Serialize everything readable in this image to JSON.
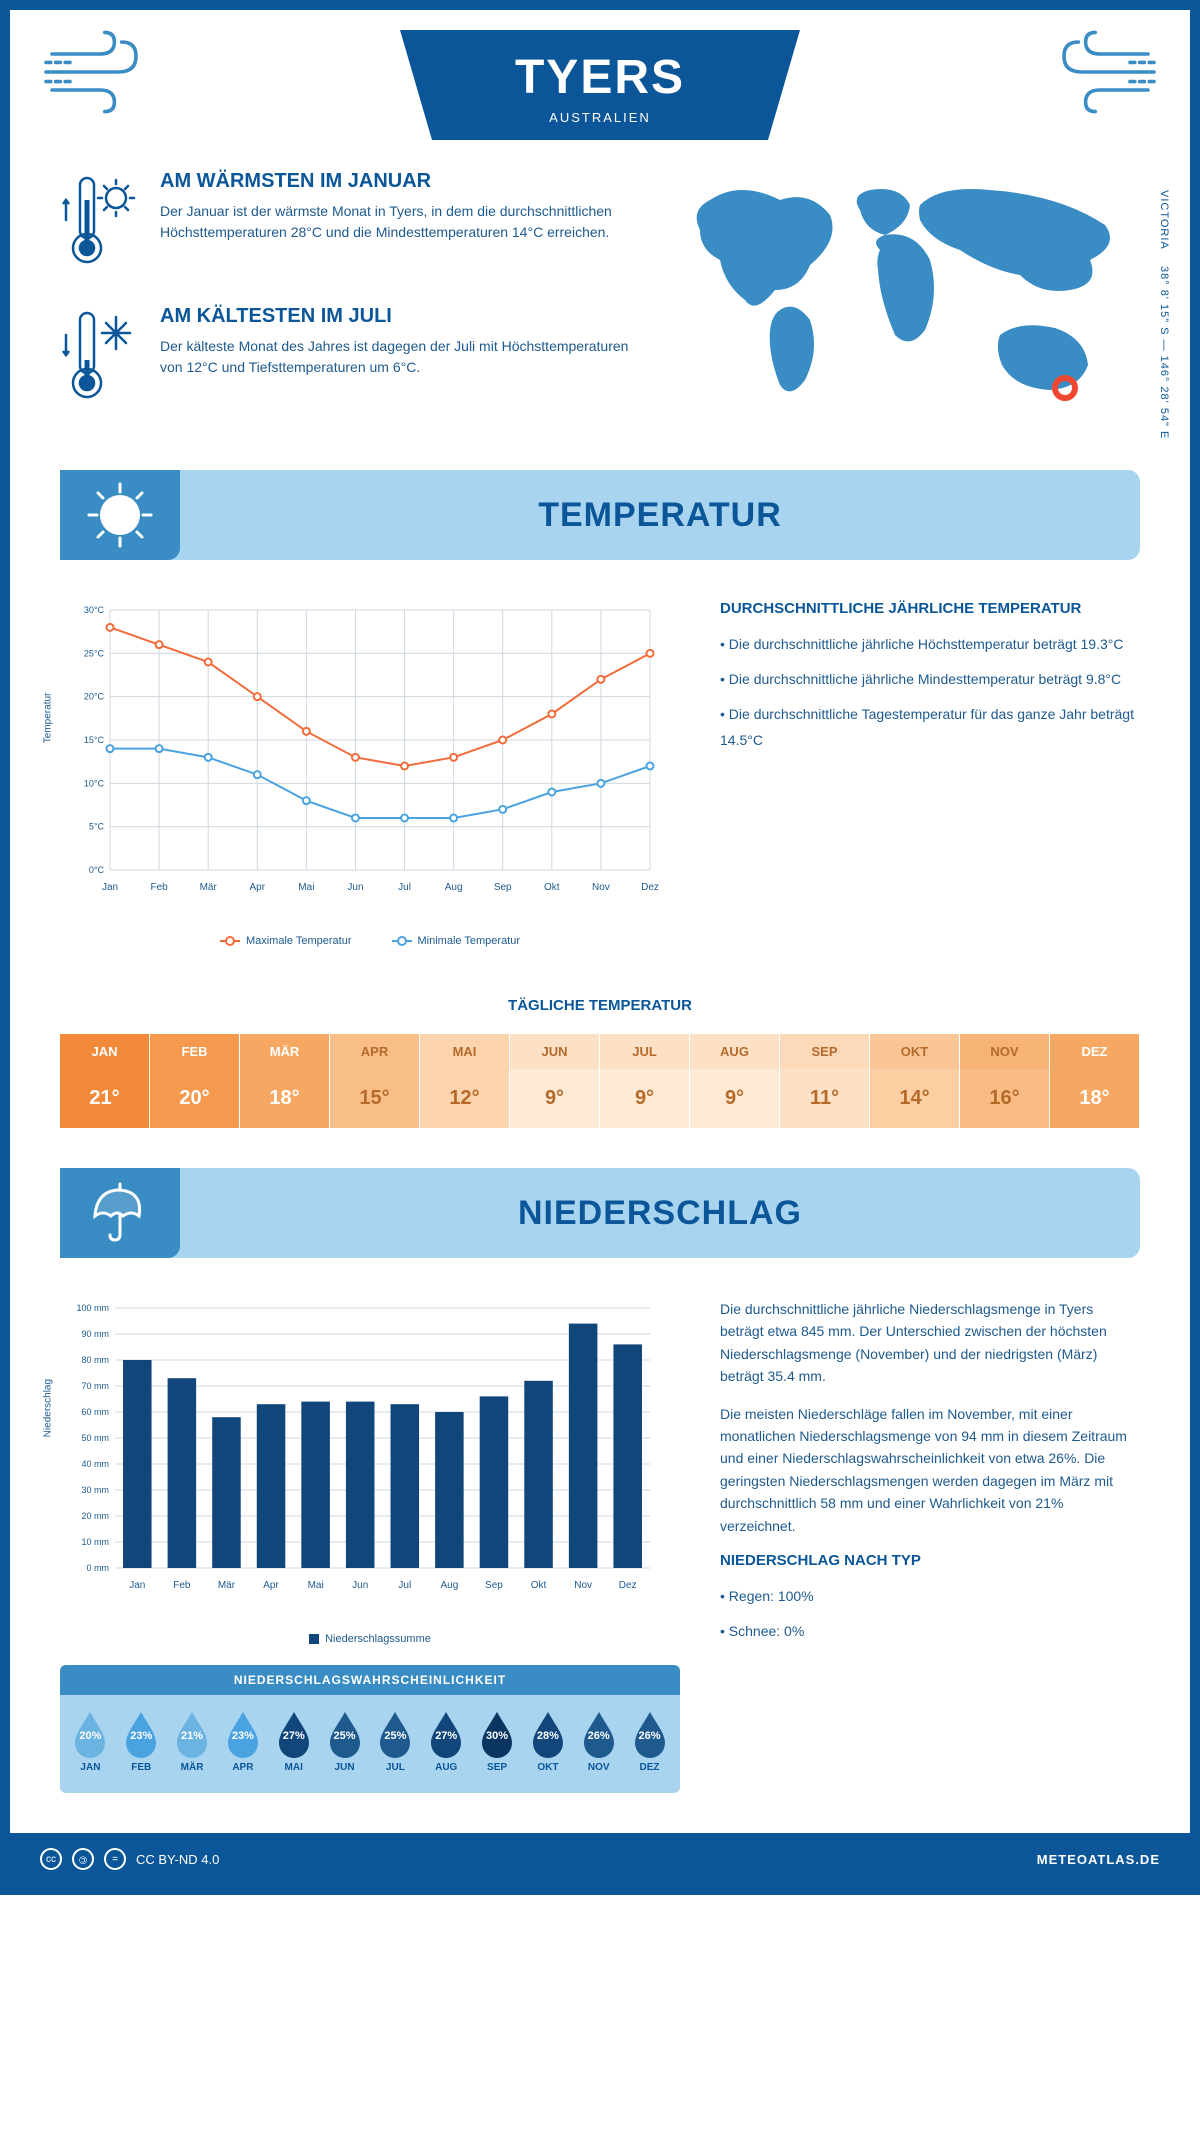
{
  "colors": {
    "primary": "#0a5698",
    "accent": "#3a8dc4",
    "light": "#a8d4f0",
    "text": "#1e5a8e",
    "line_max": "#f26b3a",
    "line_min": "#4aa3e0",
    "bar": "#10467a"
  },
  "header": {
    "title": "TYERS",
    "subtitle": "AUSTRALIEN"
  },
  "coords": {
    "lat": "38° 8' 15\" S",
    "sep": "—",
    "lon": "146° 28' 54\" E",
    "region": "VICTORIA"
  },
  "facts": {
    "warm": {
      "title": "AM WÄRMSTEN IM JANUAR",
      "text": "Der Januar ist der wärmste Monat in Tyers, in dem die durchschnittlichen Höchsttemperaturen 28°C und die Mindesttemperaturen 14°C erreichen."
    },
    "cold": {
      "title": "AM KÄLTESTEN IM JULI",
      "text": "Der kälteste Monat des Jahres ist dagegen der Juli mit Höchsttemperaturen von 12°C und Tiefsttemperaturen um 6°C."
    }
  },
  "temp_section": {
    "title": "TEMPERATUR",
    "chart": {
      "type": "line",
      "ylabel": "Temperatur",
      "ylim": [
        0,
        30
      ],
      "ytick_step": 5,
      "ytick_labels": [
        "0°C",
        "5°C",
        "10°C",
        "15°C",
        "20°C",
        "25°C",
        "30°C"
      ],
      "months": [
        "Jan",
        "Feb",
        "Mär",
        "Apr",
        "Mai",
        "Jun",
        "Jul",
        "Aug",
        "Sep",
        "Okt",
        "Nov",
        "Dez"
      ],
      "max_series": [
        28,
        26,
        24,
        20,
        16,
        13,
        12,
        13,
        15,
        18,
        22,
        25
      ],
      "min_series": [
        14,
        14,
        13,
        11,
        8,
        6,
        6,
        6,
        7,
        9,
        10,
        12
      ],
      "max_color": "#f26b3a",
      "min_color": "#4aa3e0",
      "grid_color": "#d0d8e0",
      "legend_max": "Maximale Temperatur",
      "legend_min": "Minimale Temperatur"
    },
    "stats": {
      "heading": "DURCHSCHNITTLICHE JÄHRLICHE TEMPERATUR",
      "items": [
        "• Die durchschnittliche jährliche Höchsttemperatur beträgt 19.3°C",
        "• Die durchschnittliche jährliche Mindesttemperatur beträgt 9.8°C",
        "• Die durchschnittliche Tagestemperatur für das ganze Jahr beträgt 14.5°C"
      ]
    },
    "daily_heading": "TÄGLICHE TEMPERATUR",
    "daily": {
      "months": [
        "JAN",
        "FEB",
        "MÄR",
        "APR",
        "MAI",
        "JUN",
        "JUL",
        "AUG",
        "SEP",
        "OKT",
        "NOV",
        "DEZ"
      ],
      "values": [
        "21°",
        "20°",
        "18°",
        "15°",
        "12°",
        "9°",
        "9°",
        "9°",
        "11°",
        "14°",
        "16°",
        "18°"
      ],
      "header_colors": [
        "#f28a3a",
        "#f4994e",
        "#f6a862",
        "#f9be88",
        "#fbd4ae",
        "#fde1c6",
        "#fde1c6",
        "#fde1c6",
        "#fcd9b9",
        "#f9c594",
        "#f7b276",
        "#f6a862"
      ],
      "cell_colors": [
        "#f28a3a",
        "#f4994e",
        "#f6a862",
        "#f9be88",
        "#fbd4ae",
        "#fde9d4",
        "#fde9d4",
        "#fde9d4",
        "#fde1c6",
        "#fbcfa2",
        "#f8bc84",
        "#f6a862"
      ],
      "text_colors": [
        "#ffffff",
        "#ffffff",
        "#ffffff",
        "#b56a2a",
        "#b56a2a",
        "#b56a2a",
        "#b56a2a",
        "#b56a2a",
        "#b56a2a",
        "#b56a2a",
        "#b56a2a",
        "#ffffff"
      ]
    }
  },
  "precip_section": {
    "title": "NIEDERSCHLAG",
    "chart": {
      "type": "bar",
      "ylabel": "Niederschlag",
      "ylim": [
        0,
        100
      ],
      "ytick_step": 10,
      "ytick_suffix": " mm",
      "months": [
        "Jan",
        "Feb",
        "Mär",
        "Apr",
        "Mai",
        "Jun",
        "Jul",
        "Aug",
        "Sep",
        "Okt",
        "Nov",
        "Dez"
      ],
      "values": [
        80,
        73,
        58,
        63,
        64,
        64,
        63,
        60,
        66,
        72,
        94,
        86
      ],
      "bar_color": "#10467a",
      "grid_color": "#d0d8e0",
      "legend": "Niederschlagssumme"
    },
    "text": {
      "p1": "Die durchschnittliche jährliche Niederschlagsmenge in Tyers beträgt etwa 845 mm. Der Unterschied zwischen der höchsten Niederschlagsmenge (November) und der niedrigsten (März) beträgt 35.4 mm.",
      "p2": "Die meisten Niederschläge fallen im November, mit einer monatlichen Niederschlagsmenge von 94 mm in diesem Zeitraum und einer Niederschlagswahrscheinlichkeit von etwa 26%. Die geringsten Niederschlagsmengen werden dagegen im März mit durchschnittlich 58 mm und einer Wahrlichkeit von 21% verzeichnet.",
      "type_heading": "NIEDERSCHLAG NACH TYP",
      "type_items": [
        "• Regen: 100%",
        "• Schnee: 0%"
      ]
    },
    "prob": {
      "title": "NIEDERSCHLAGSWAHRSCHEINLICHKEIT",
      "months": [
        "JAN",
        "FEB",
        "MÄR",
        "APR",
        "MAI",
        "JUN",
        "JUL",
        "AUG",
        "SEP",
        "OKT",
        "NOV",
        "DEZ"
      ],
      "values": [
        "20%",
        "23%",
        "21%",
        "23%",
        "27%",
        "25%",
        "25%",
        "27%",
        "30%",
        "28%",
        "26%",
        "26%"
      ],
      "colors": [
        "#6bb3e0",
        "#4aa3e0",
        "#6bb3e0",
        "#4aa3e0",
        "#10467a",
        "#1e5a8e",
        "#1e5a8e",
        "#10467a",
        "#0a3560",
        "#10467a",
        "#1e5a8e",
        "#1e5a8e"
      ]
    }
  },
  "footer": {
    "license": "CC BY-ND 4.0",
    "site": "METEOATLAS.DE"
  }
}
